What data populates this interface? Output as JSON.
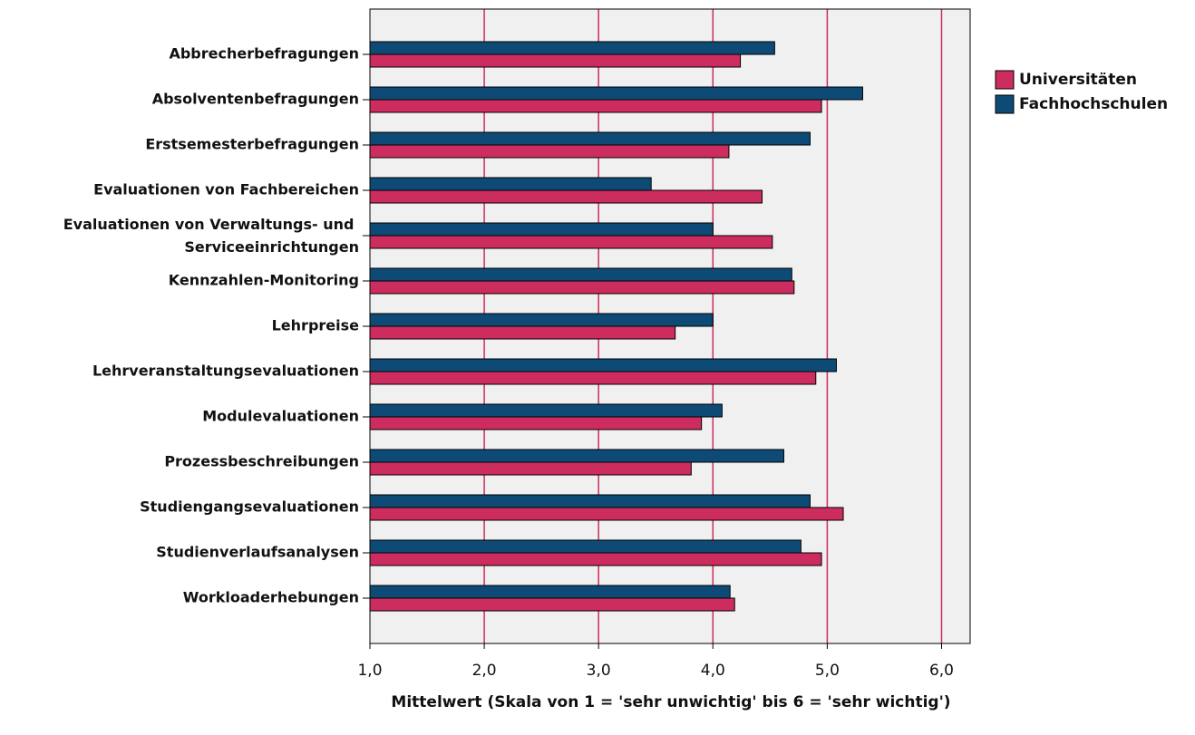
{
  "chart_data": {
    "type": "bar",
    "orientation": "horizontal",
    "x_label": "Mittelwert (Skala von 1 = 'sehr unwichtig' bis 6 = 'sehr wichtig')",
    "categories": [
      "Abbrecherbefragungen",
      "Absolventenbefragungen",
      "Erstsemesterbefragungen",
      "Evaluationen von Fachbereichen",
      "Evaluationen von Verwaltungs- und Serviceeinrichtungen",
      "Kennzahlen-Monitoring",
      "Lehrpreise",
      "Lehrveranstaltungsevaluationen",
      "Modulevaluationen",
      "Prozessbeschreibungen",
      "Studiengangsevaluationen",
      "Studienverlaufsanalysen",
      "Workloaderhebungen"
    ],
    "series": [
      {
        "name": "Universitäten",
        "color": "#cc2d5e",
        "values": [
          4.24,
          4.95,
          4.14,
          4.43,
          4.52,
          4.71,
          3.67,
          4.9,
          3.9,
          3.81,
          5.14,
          4.95,
          4.19
        ]
      },
      {
        "name": "Fachhochschulen",
        "color": "#0e4a76",
        "values": [
          4.54,
          5.31,
          4.85,
          3.46,
          4.0,
          4.69,
          4.0,
          5.08,
          4.08,
          4.62,
          4.85,
          4.77,
          4.15
        ]
      }
    ],
    "xlim": [
      1,
      6.25
    ],
    "xticks": [
      {
        "value": 1,
        "label": "1,0"
      },
      {
        "value": 2,
        "label": "2,0"
      },
      {
        "value": 3,
        "label": "3,0"
      },
      {
        "value": 4,
        "label": "4,0"
      },
      {
        "value": 5,
        "label": "5,0"
      },
      {
        "value": 6,
        "label": "6,0"
      }
    ],
    "grid": true,
    "grid_color": "#cc2d5e",
    "legend": "right"
  }
}
